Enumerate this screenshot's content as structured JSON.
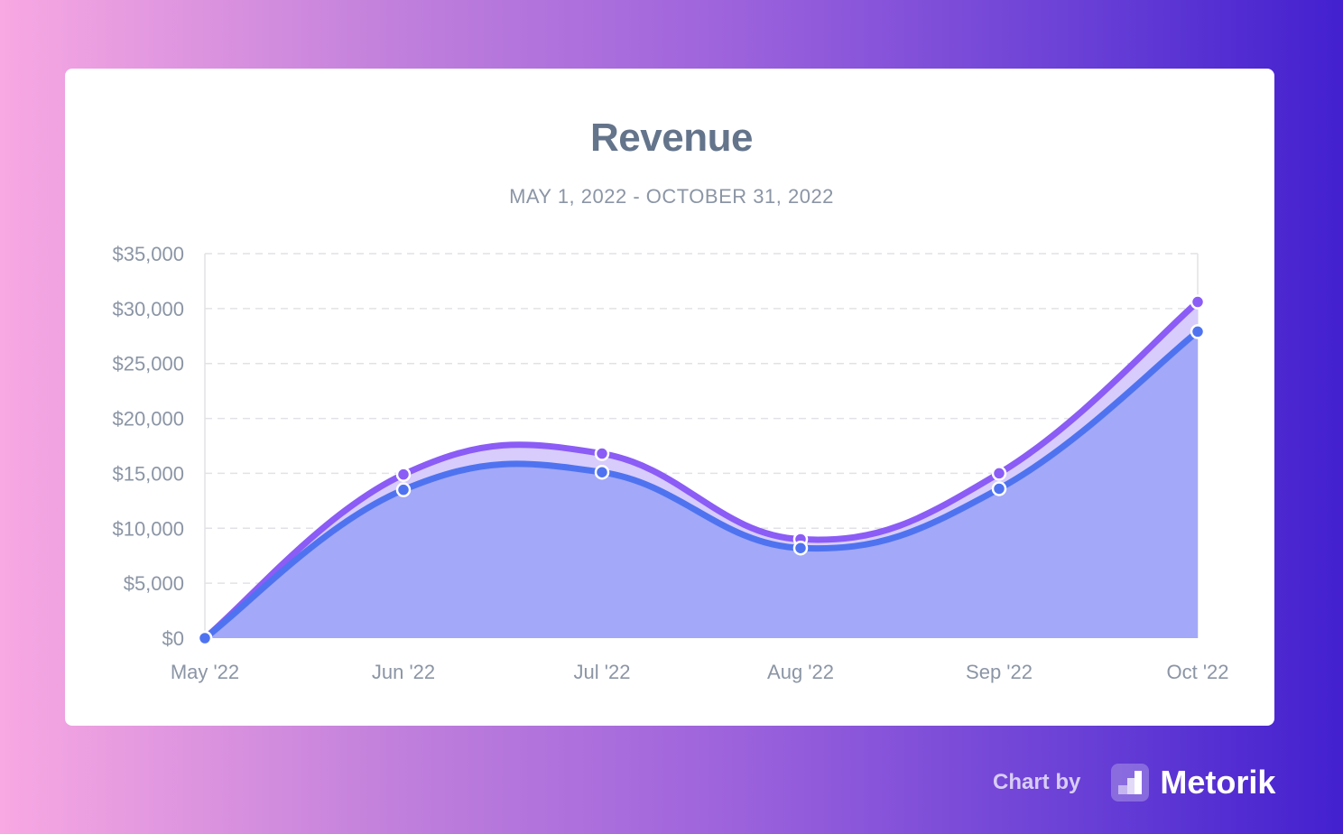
{
  "chart_data": {
    "type": "area",
    "title": "Revenue",
    "subtitle": "MAY 1, 2022 - OCTOBER 31, 2022",
    "categories": [
      "May '22",
      "Jun '22",
      "Jul '22",
      "Aug '22",
      "Sep '22",
      "Oct '22"
    ],
    "yticks": [
      "$0",
      "$5,000",
      "$10,000",
      "$15,000",
      "$20,000",
      "$25,000",
      "$30,000",
      "$35,000"
    ],
    "ylim": [
      0,
      35000
    ],
    "grid": true,
    "series": [
      {
        "values": [
          0,
          13500,
          15100,
          8200,
          13600,
          27900
        ],
        "color": "#4f73f0",
        "fill": "#a3a8f8"
      },
      {
        "values": [
          0,
          14900,
          16800,
          9000,
          15000,
          30600
        ],
        "color": "#8b5cf6",
        "fill": "#d7ccfb"
      }
    ]
  },
  "footer": {
    "chart_by": "Chart by",
    "brand": "Metorik"
  }
}
